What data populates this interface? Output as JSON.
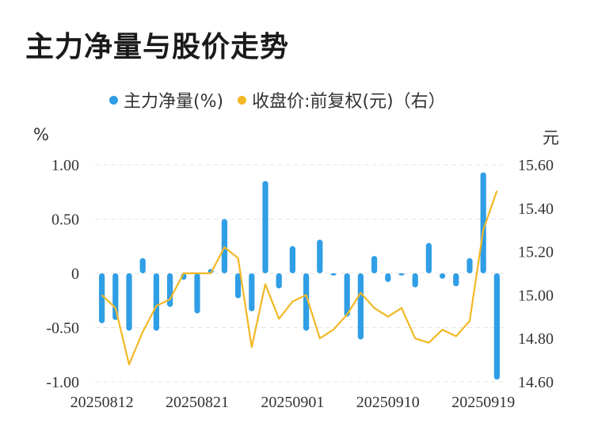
{
  "title": "主力净量与股价走势",
  "legend": {
    "series1": "主力净量(%)",
    "series2": "收盘价:前复权(元)（右）"
  },
  "units": {
    "left": "%",
    "right": "元"
  },
  "colors": {
    "bar": "#2f9ee6",
    "line": "#f2b824",
    "grid": "#e4e4e4"
  },
  "chart_data": {
    "type": "bar+line",
    "x_tick_labels": [
      "20250812",
      "20250821",
      "20250901",
      "20250910",
      "20250919"
    ],
    "left_axis": {
      "unit": "%",
      "ylim": [
        -1.0,
        1.0
      ],
      "ticks": [
        "1.00",
        "0.50",
        "0",
        "-0.50",
        "-1.00"
      ]
    },
    "right_axis": {
      "unit": "元",
      "ylim": [
        14.6,
        15.6
      ],
      "ticks": [
        "15.60",
        "15.40",
        "15.20",
        "15.00",
        "14.80",
        "14.60"
      ]
    },
    "series": [
      {
        "name": "主力净量(%)",
        "type": "bar",
        "values": [
          -0.46,
          -0.43,
          -0.53,
          0.14,
          -0.53,
          -0.31,
          -0.06,
          -0.37,
          0.04,
          0.5,
          -0.23,
          -0.35,
          0.85,
          -0.14,
          0.25,
          -0.53,
          0.31,
          -0.02,
          -0.4,
          -0.61,
          0.16,
          -0.08,
          -0.02,
          -0.13,
          0.28,
          -0.05,
          -0.12,
          0.14,
          0.93,
          -0.98
        ]
      },
      {
        "name": "收盘价:前复权(元)（右）",
        "type": "line",
        "values": [
          15.0,
          14.94,
          14.68,
          14.83,
          14.95,
          14.98,
          15.1,
          15.1,
          15.1,
          15.22,
          15.17,
          14.76,
          15.05,
          14.89,
          14.97,
          15.0,
          14.8,
          14.84,
          14.91,
          15.01,
          14.94,
          14.9,
          14.94,
          14.8,
          14.78,
          14.84,
          14.81,
          14.88,
          15.3,
          15.48
        ]
      }
    ],
    "x_tick_indices": [
      0,
      7,
      14,
      21,
      28
    ],
    "grid": true,
    "legend_position": "top-center"
  }
}
